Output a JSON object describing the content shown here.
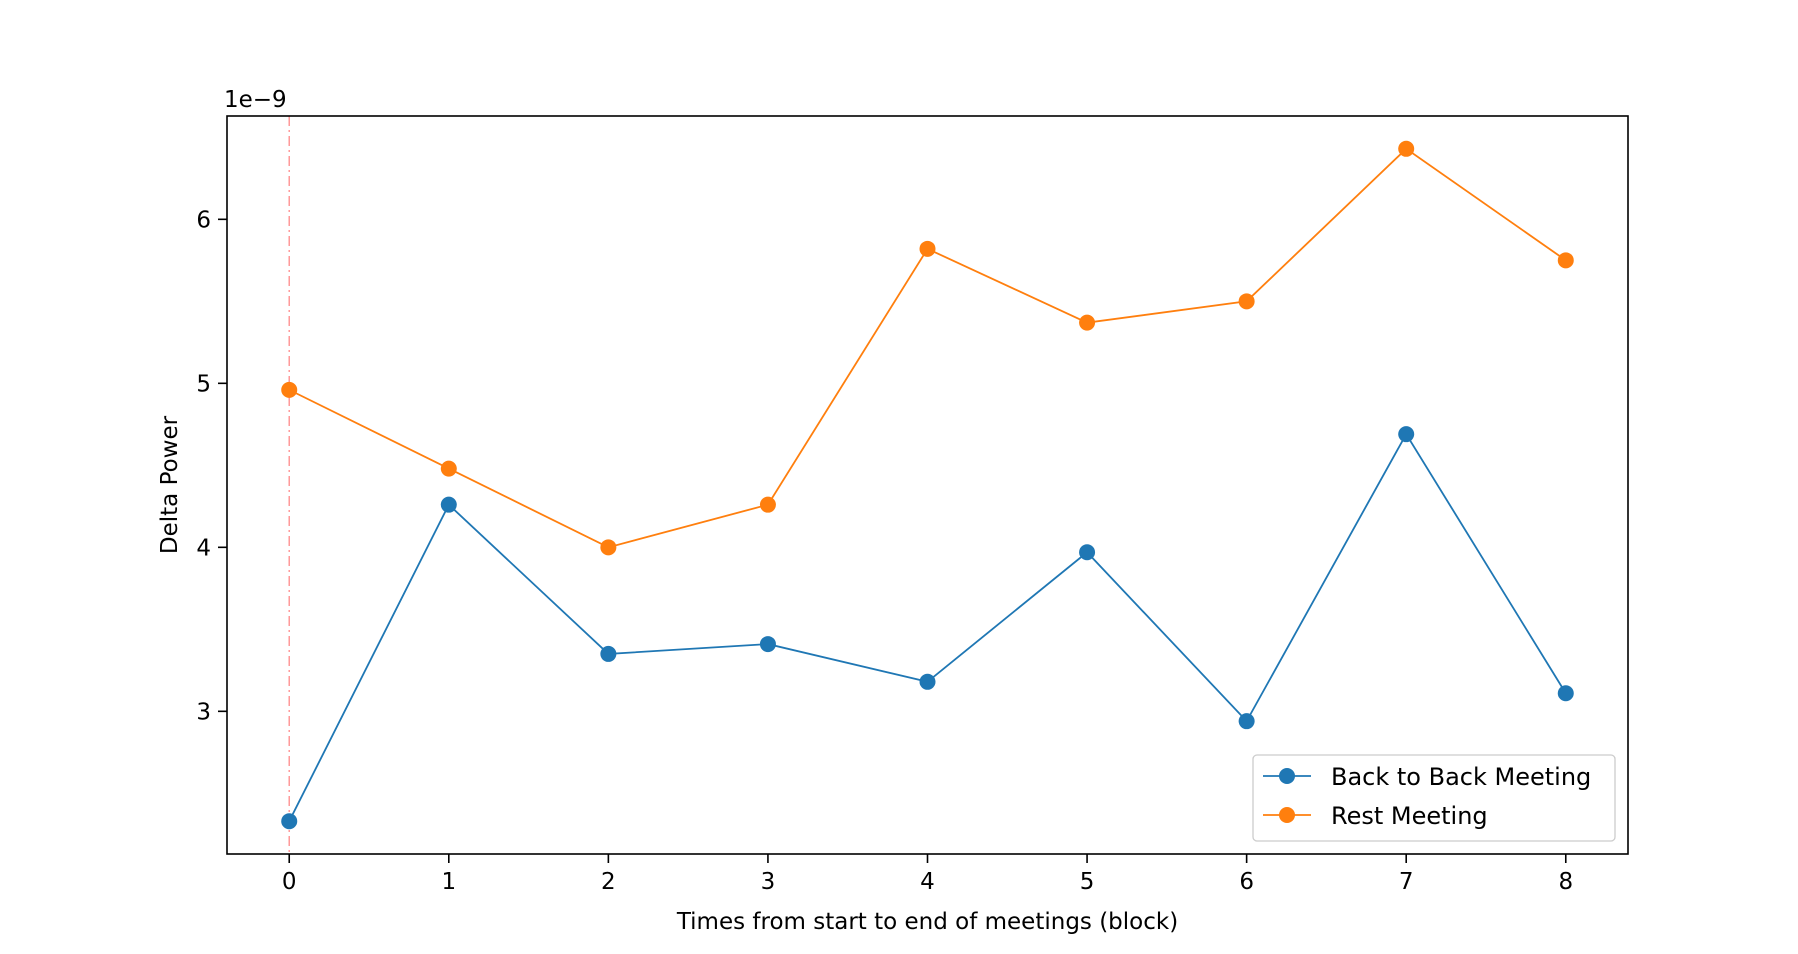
{
  "chart_data": {
    "type": "line",
    "title": "",
    "xlabel": "Times from start to end of meetings (block)",
    "ylabel": "Delta Power",
    "y_offset_label": "1e−9",
    "x": [
      0,
      1,
      2,
      3,
      4,
      5,
      6,
      7,
      8
    ],
    "x_ticks": [
      "0",
      "1",
      "2",
      "3",
      "4",
      "5",
      "6",
      "7",
      "8"
    ],
    "y_ticks": [
      "3",
      "4",
      "5",
      "6"
    ],
    "y_tick_values": [
      3,
      4,
      5,
      6
    ],
    "xlim": [
      -0.39,
      8.39
    ],
    "ylim": [
      2.13,
      6.63
    ],
    "y_scale": "1e-9",
    "grid": false,
    "legend_position": "lower right",
    "vertical_marker": {
      "x": 0,
      "color": "#ff9999",
      "style": "dash-dot"
    },
    "series": [
      {
        "name": "Back to Back Meeting",
        "color": "#1f77b4",
        "values": [
          2.33,
          4.26,
          3.35,
          3.41,
          3.18,
          3.97,
          2.94,
          4.69,
          3.11
        ]
      },
      {
        "name": "Rest Meeting",
        "color": "#ff7f0e",
        "values": [
          4.96,
          4.48,
          4.0,
          4.26,
          5.82,
          5.37,
          5.5,
          6.43,
          5.75
        ]
      }
    ]
  }
}
